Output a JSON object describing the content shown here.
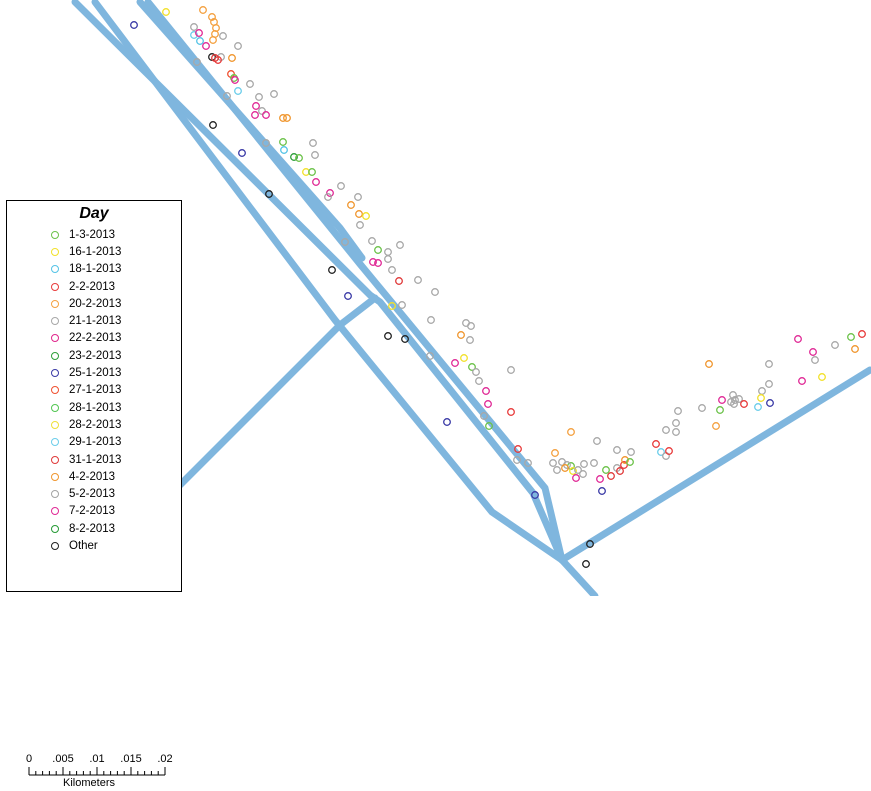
{
  "legend": {
    "title": "Day",
    "items": [
      {
        "label": "1-3-2013",
        "color": "#6cc24a"
      },
      {
        "label": "16-1-2013",
        "color": "#f2e12b"
      },
      {
        "label": "18-1-2013",
        "color": "#54c3e6"
      },
      {
        "label": "2-2-2013",
        "color": "#e83b3b"
      },
      {
        "label": "20-2-2013",
        "color": "#f4a140"
      },
      {
        "label": "21-1-2013",
        "color": "#a8a8a8"
      },
      {
        "label": "22-2-2013",
        "color": "#e0268c"
      },
      {
        "label": "23-2-2013",
        "color": "#2e9e3a"
      },
      {
        "label": "25-1-2013",
        "color": "#3a3aa6"
      },
      {
        "label": "27-1-2013",
        "color": "#f05030"
      },
      {
        "label": "28-1-2013",
        "color": "#52c652"
      },
      {
        "label": "28-2-2013",
        "color": "#efe038"
      },
      {
        "label": "29-1-2013",
        "color": "#6bcdea"
      },
      {
        "label": "31-1-2013",
        "color": "#e03a3a"
      },
      {
        "label": "4-2-2013",
        "color": "#f0962e"
      },
      {
        "label": "5-2-2013",
        "color": "#a3a3a3"
      },
      {
        "label": "7-2-2013",
        "color": "#e02a96"
      },
      {
        "label": "8-2-2013",
        "color": "#259a35"
      },
      {
        "label": "Other",
        "color": "#222222"
      }
    ]
  },
  "scale_bar": {
    "ticks": [
      "0",
      ".005",
      ".01",
      ".015",
      ".02"
    ],
    "unit": "Kilometers"
  },
  "colors": {
    "road": "#7fb6de"
  }
}
